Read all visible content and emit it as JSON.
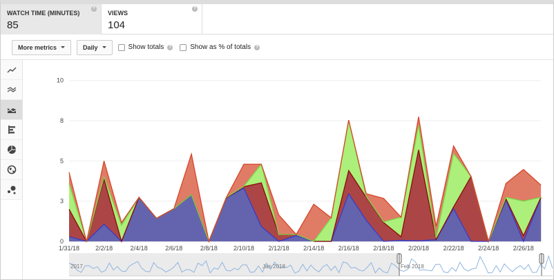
{
  "metric_cards": [
    {
      "label": "WATCH TIME (MINUTES)",
      "value": "85",
      "selected": true
    },
    {
      "label": "VIEWS",
      "value": "104",
      "selected": false
    }
  ],
  "toolbar": {
    "more_metrics": "More metrics",
    "interval": "Daily",
    "show_totals": "Show totals",
    "show_totals_checked": false,
    "show_percent": "Show as % of totals",
    "show_percent_checked": false
  },
  "sidebar": {
    "items": [
      {
        "icon": "line-chart-icon"
      },
      {
        "icon": "multi-line-chart-icon"
      },
      {
        "icon": "stacked-area-chart-icon",
        "selected": true
      },
      {
        "icon": "bar-chart-icon"
      },
      {
        "icon": "pie-chart-icon"
      },
      {
        "icon": "globe-map-icon"
      },
      {
        "icon": "bubble-chart-icon"
      }
    ]
  },
  "colors": {
    "blue_fill": "#6464ae",
    "blue_line": "#3a3ac8",
    "red_fill": "#ac4646",
    "red_line": "#8b0a0a",
    "green_fill": "#acef7a",
    "green_line": "#7ad84a",
    "salmon_fill": "#e07c66",
    "salmon_line": "#d6452a"
  },
  "chart_data": {
    "type": "area",
    "stacked": true,
    "x": [
      "1/31/18",
      "2/1/18",
      "2/2/18",
      "2/3/18",
      "2/4/18",
      "2/5/18",
      "2/6/18",
      "2/7/18",
      "2/8/18",
      "2/9/18",
      "2/10/18",
      "2/11/18",
      "2/12/18",
      "2/13/18",
      "2/14/18",
      "2/15/18",
      "2/16/18",
      "2/17/18",
      "2/18/18",
      "2/19/18",
      "2/20/18",
      "2/21/18",
      "2/22/18",
      "2/23/18",
      "2/24/18",
      "2/25/18",
      "2/26/18",
      "2/27/18"
    ],
    "x_tick_labels": [
      "1/31/18",
      "2/2/18",
      "2/4/18",
      "2/6/18",
      "2/8/18",
      "2/10/18",
      "2/12/18",
      "2/14/18",
      "2/16/18",
      "2/18/18",
      "2/20/18",
      "2/22/18",
      "2/24/18",
      "2/26/18"
    ],
    "y_tick_labels": [
      "0",
      "3",
      "5",
      "8",
      "10"
    ],
    "y_ticks": [
      0,
      2.5,
      5,
      7.5,
      10
    ],
    "ylim": [
      0,
      10
    ],
    "grid": true,
    "series": [
      {
        "values": [
          0.29,
          0,
          1.07,
          0,
          2.74,
          1.43,
          2.03,
          2.9,
          0,
          2.71,
          3.31,
          0.93,
          0,
          0.36,
          0,
          0,
          2.96,
          1.31,
          0,
          0.07,
          0.03,
          0.11,
          2.03,
          0,
          0,
          2.57,
          0,
          2.74
        ]
      },
      {
        "values": [
          1.71,
          0,
          2.79,
          0,
          0,
          0,
          0,
          0,
          0,
          0,
          0.09,
          2.71,
          0.43,
          0.07,
          0,
          0,
          1.44,
          1.43,
          1.17,
          0.22,
          5.66,
          0,
          0.11,
          4.03,
          0,
          0.07,
          0.36,
          0
        ]
      },
      {
        "values": [
          1.6,
          0,
          0.14,
          1.0,
          0,
          0,
          0,
          0,
          0,
          0.03,
          0.03,
          1.15,
          0,
          0,
          0,
          1.46,
          3.14,
          0.05,
          0.04,
          1.21,
          1.52,
          0.1,
          3.32,
          0,
          0,
          0.1,
          2.14,
          0
        ]
      },
      {
        "values": [
          0.69,
          0,
          1.0,
          0.17,
          0,
          0,
          0,
          2.53,
          0,
          0,
          1.36,
          0,
          1.21,
          0,
          2.31,
          0,
          0,
          0.17,
          1.46,
          0,
          0.53,
          0.72,
          0.47,
          0,
          0,
          0.86,
          1.97,
          0.76
        ]
      }
    ]
  },
  "navigator": {
    "labels": [
      "2017",
      "Jan 2018",
      "Feb 2018"
    ]
  }
}
